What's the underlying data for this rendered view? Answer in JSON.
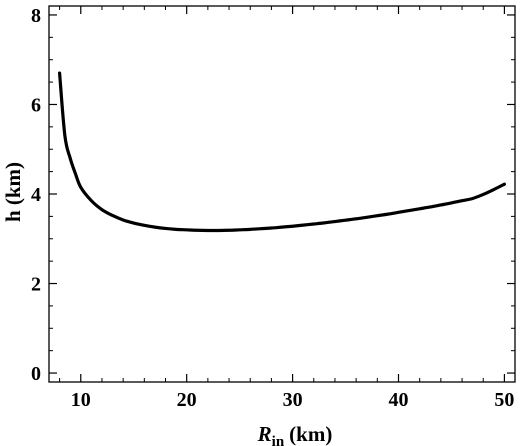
{
  "chart_data": {
    "type": "line",
    "title": "",
    "xlabel": {
      "main": "R",
      "sub": "in",
      "unit": "(km)"
    },
    "ylabel": "h (km)",
    "xlim": [
      7,
      51
    ],
    "ylim": [
      -0.2,
      8.2
    ],
    "x_ticks": [
      10,
      20,
      30,
      40,
      50
    ],
    "y_ticks": [
      0,
      2,
      4,
      6,
      8
    ],
    "grid": false,
    "legend": "none",
    "line_color": "#000000",
    "series": [
      {
        "x": [
          8,
          8.5,
          9,
          9.5,
          10,
          11,
          12,
          13,
          14,
          15,
          16,
          17,
          18,
          19,
          20,
          21,
          22,
          23,
          24,
          25,
          26,
          27,
          28,
          29,
          30,
          31,
          32,
          33,
          34,
          35,
          36,
          37,
          38,
          39,
          40,
          41,
          42,
          43,
          44,
          45,
          46,
          47,
          48,
          49,
          50
        ],
        "values": [
          6.7,
          5.3,
          4.8,
          4.45,
          4.15,
          3.85,
          3.65,
          3.52,
          3.42,
          3.35,
          3.3,
          3.26,
          3.23,
          3.21,
          3.2,
          3.19,
          3.185,
          3.185,
          3.19,
          3.2,
          3.21,
          3.225,
          3.24,
          3.26,
          3.28,
          3.305,
          3.33,
          3.355,
          3.385,
          3.415,
          3.445,
          3.48,
          3.515,
          3.55,
          3.59,
          3.63,
          3.67,
          3.71,
          3.755,
          3.8,
          3.85,
          3.9,
          3.99,
          4.1,
          4.22
        ]
      }
    ]
  }
}
